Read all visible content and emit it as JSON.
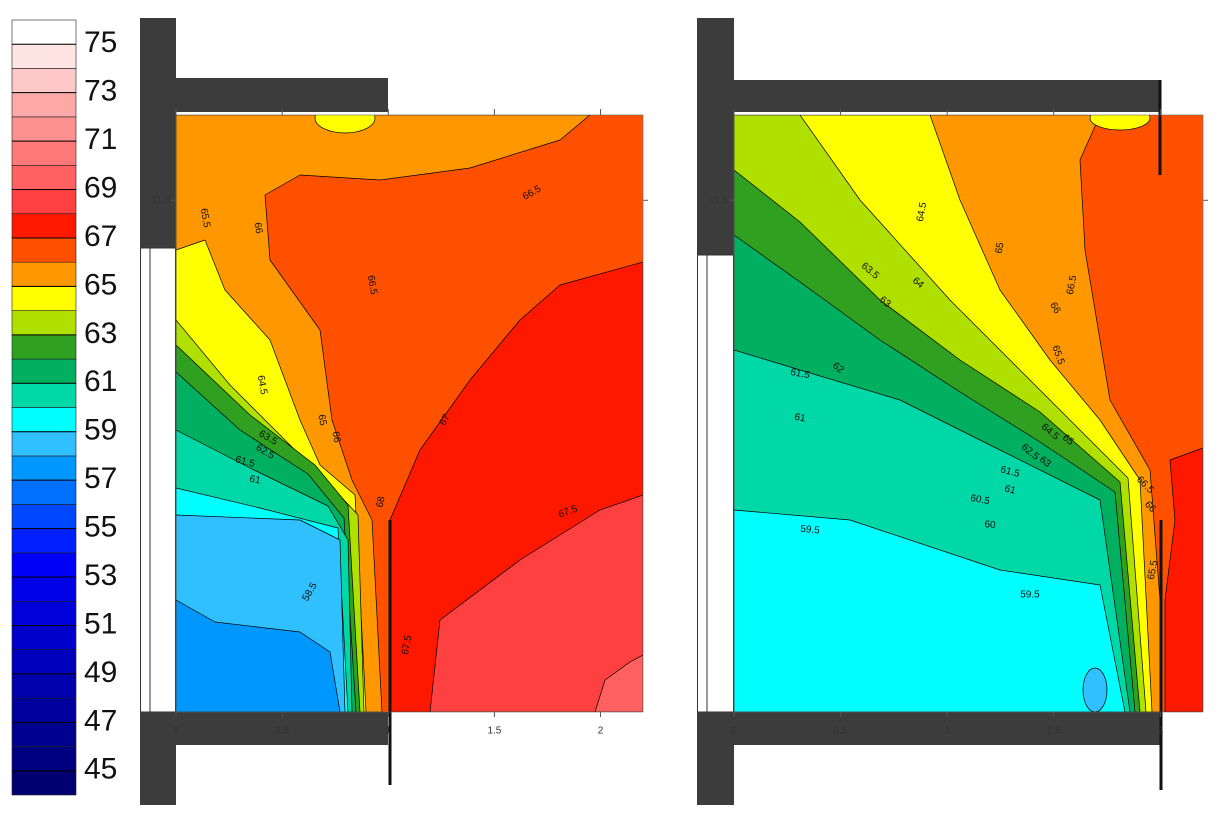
{
  "chart_data": [
    {
      "type": "colorbar",
      "zlim": [
        44,
        76
      ],
      "ticks": [
        45,
        47,
        49,
        51,
        53,
        55,
        57,
        59,
        61,
        63,
        65,
        67,
        69,
        71,
        73,
        75
      ],
      "colors": [
        "#000070",
        "#000080",
        "#00008f",
        "#00009e",
        "#0000ad",
        "#0000bc",
        "#0000cb",
        "#0000da",
        "#0000e9",
        "#0000f8",
        "#0020ff",
        "#0048ff",
        "#0070ff",
        "#0098ff",
        "#30c0ff",
        "#00ffff",
        "#00d8a8",
        "#00b060",
        "#30a020",
        "#b0e000",
        "#ffff00",
        "#ff9800",
        "#ff5000",
        "#ff1800",
        "#ff4040",
        "#ff6060",
        "#ff7878",
        "#ff9090",
        "#ffa8a8",
        "#ffc8c8",
        "#ffe4e4",
        "#ffffff"
      ]
    },
    {
      "type": "contour",
      "xlim": [
        0,
        2.2
      ],
      "xticks": [
        0,
        0.5,
        1,
        1.5,
        2
      ],
      "ylim": [
        9.1,
        11.9
      ],
      "yticks": [
        11.5
      ],
      "regions": [
        66.5,
        67.5,
        68.5,
        69.5,
        65.5,
        64.5,
        63.5,
        62.5,
        61.5,
        60.5,
        59.5,
        58.5,
        57.5,
        64.5
      ],
      "contour_labels": [
        65.5,
        66,
        66.5,
        66.5,
        64.5,
        65,
        66,
        63.5,
        62.5,
        61.5,
        61,
        67,
        67.5,
        68,
        58.5,
        67.5
      ]
    },
    {
      "type": "contour",
      "xlim": [
        0,
        2.2
      ],
      "xticks": [
        0,
        0.5,
        1,
        1.5,
        2
      ],
      "ylim": [
        9.1,
        11.9
      ],
      "yticks": [
        11.5
      ],
      "regions": [
        66.5,
        67.5,
        65.5,
        64.5,
        63.5,
        62.5,
        61.5,
        60.5,
        59.5,
        58.5,
        64.5
      ],
      "contour_labels": [
        64.5,
        65,
        66.5,
        66,
        65.5,
        63.5,
        64,
        63,
        62,
        61.5,
        61,
        62.5,
        63,
        64.5,
        65,
        61.5,
        61,
        60.5,
        60,
        59.5,
        59.5,
        66.5,
        66,
        65.5
      ]
    }
  ]
}
